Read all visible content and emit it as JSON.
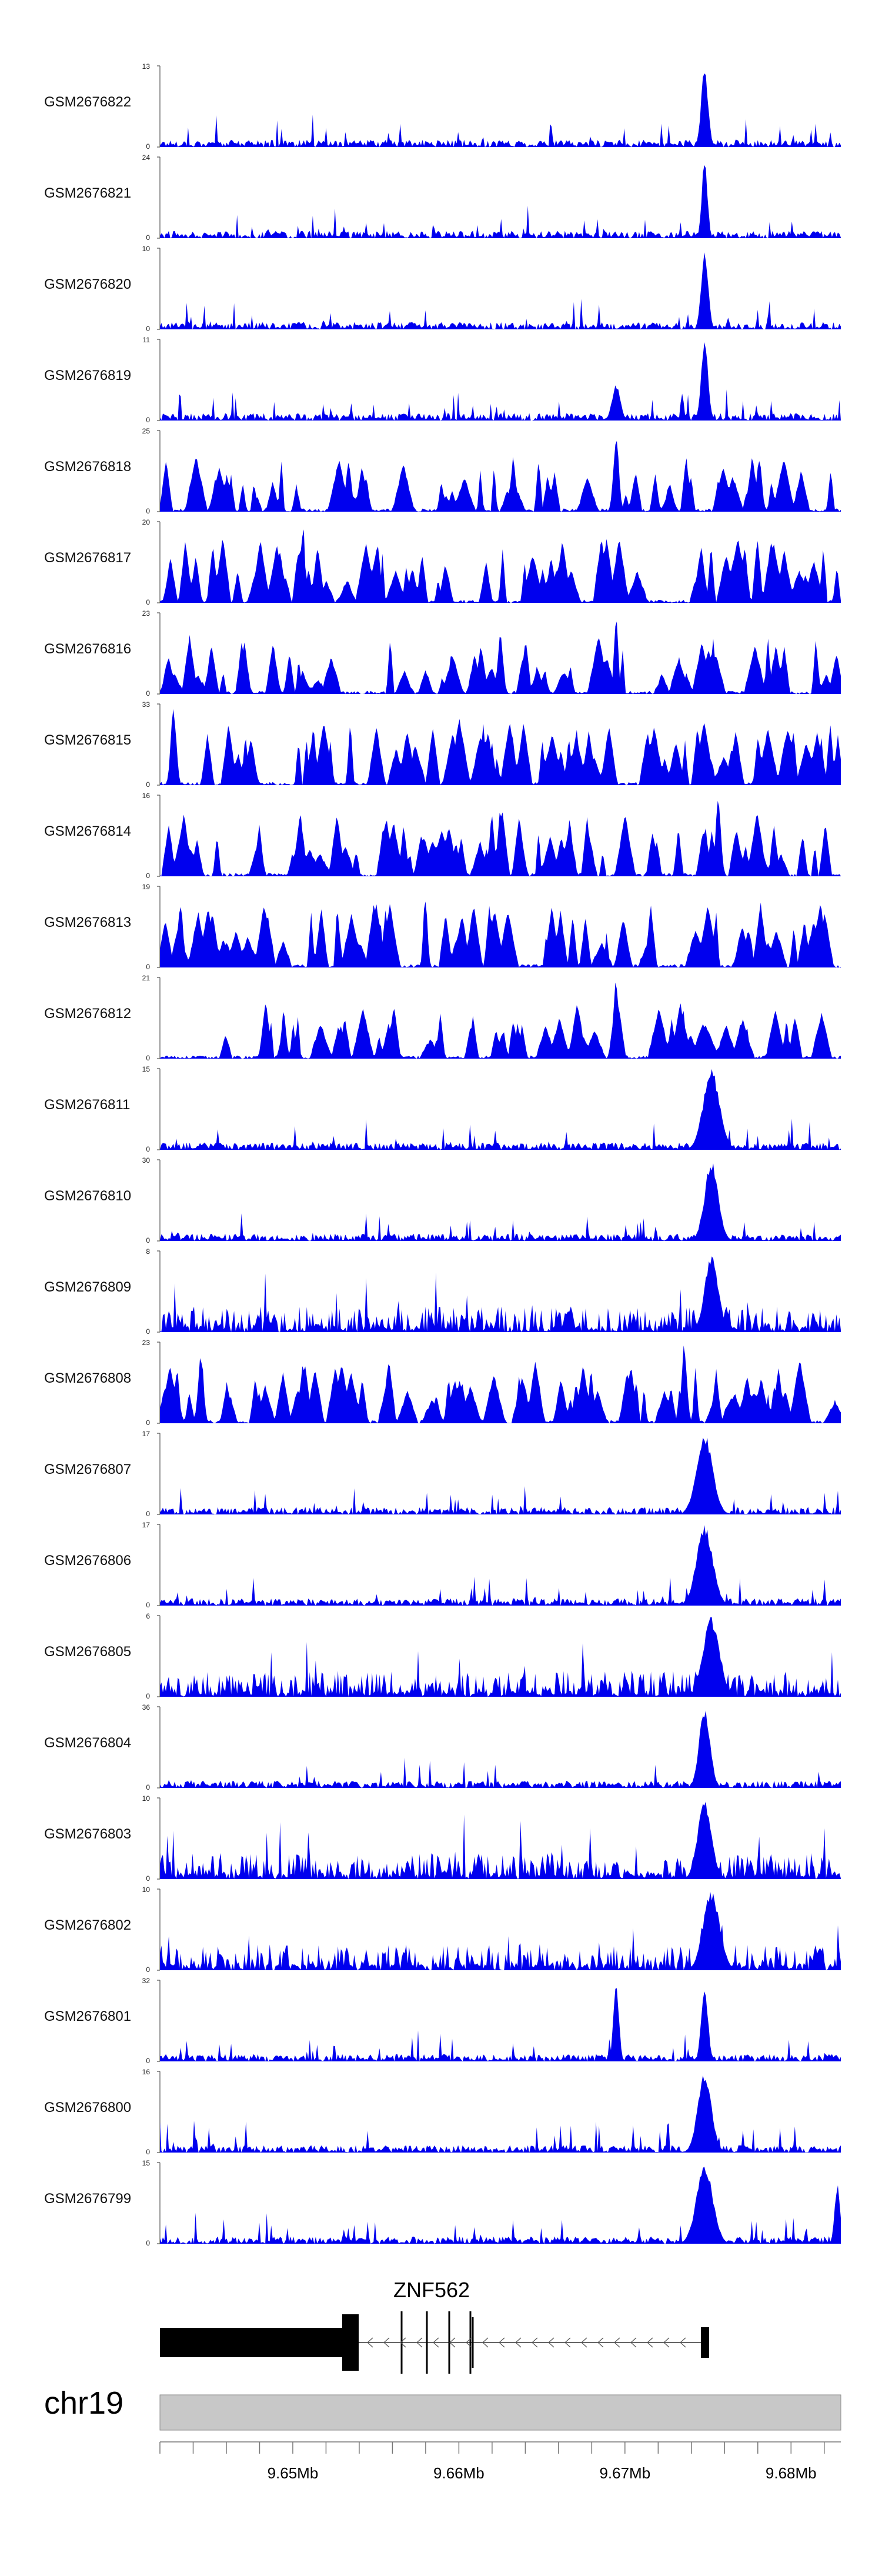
{
  "chart_data": {
    "type": "area",
    "title": "",
    "xlabel": "",
    "ylabel": "",
    "chromosome": "chr19",
    "x_range_bp": [
      9642000,
      9683000
    ],
    "x_ticks_bp": [
      9650000,
      9660000,
      9670000,
      9680000
    ],
    "x_tick_labels": [
      "9.65Mb",
      "9.66Mb",
      "9.67Mb",
      "9.68Mb"
    ],
    "series_color": "#0000ee",
    "tracks": [
      {
        "name": "GSM2676822",
        "ymax": 13,
        "style": 0,
        "peaks": [
          [
            0.8,
            1.0,
            0.005
          ]
        ]
      },
      {
        "name": "GSM2676821",
        "ymax": 24,
        "style": 0,
        "peaks": [
          [
            0.8,
            1.0,
            0.004
          ]
        ]
      },
      {
        "name": "GSM2676820",
        "ymax": 10,
        "style": 0,
        "peaks": [
          [
            0.8,
            1.0,
            0.005
          ]
        ]
      },
      {
        "name": "GSM2676819",
        "ymax": 11,
        "style": 0,
        "peaks": [
          [
            0.8,
            1.0,
            0.005
          ],
          [
            0.67,
            0.45,
            0.006
          ]
        ]
      },
      {
        "name": "GSM2676818",
        "ymax": 25,
        "style": 1,
        "peaks": [
          [
            0.67,
            1.0,
            0.004
          ],
          [
            0.88,
            0.7,
            0.004
          ]
        ]
      },
      {
        "name": "GSM2676817",
        "ymax": 20,
        "style": 2,
        "peaks": [
          [
            0.21,
            1.0,
            0.003
          ]
        ]
      },
      {
        "name": "GSM2676816",
        "ymax": 23,
        "style": 1,
        "peaks": [
          [
            0.67,
            1.0,
            0.003
          ],
          [
            0.5,
            0.75,
            0.004
          ]
        ]
      },
      {
        "name": "GSM2676815",
        "ymax": 33,
        "style": 2,
        "peaks": [
          [
            0.02,
            1.0,
            0.004
          ]
        ]
      },
      {
        "name": "GSM2676814",
        "ymax": 16,
        "style": 2,
        "peaks": [
          [
            0.82,
            0.95,
            0.004
          ],
          [
            0.5,
            0.85,
            0.004
          ]
        ]
      },
      {
        "name": "GSM2676813",
        "ymax": 19,
        "style": 2,
        "peaks": [
          [
            0.39,
            0.95,
            0.003
          ],
          [
            0.03,
            0.8,
            0.004
          ]
        ]
      },
      {
        "name": "GSM2676812",
        "ymax": 21,
        "style": 1,
        "peaks": [
          [
            0.67,
            1.0,
            0.004
          ],
          [
            0.8,
            0.45,
            0.01
          ]
        ]
      },
      {
        "name": "GSM2676811",
        "ymax": 15,
        "style": 0,
        "peaks": [
          [
            0.81,
            1.0,
            0.012
          ]
        ]
      },
      {
        "name": "GSM2676810",
        "ymax": 30,
        "style": 0,
        "peaks": [
          [
            0.81,
            1.0,
            0.01
          ]
        ]
      },
      {
        "name": "GSM2676809",
        "ymax": 8,
        "style": 3,
        "peaks": [
          [
            0.81,
            0.95,
            0.01
          ]
        ]
      },
      {
        "name": "GSM2676808",
        "ymax": 23,
        "style": 2,
        "peaks": [
          [
            0.06,
            0.9,
            0.004
          ],
          [
            0.77,
            1.0,
            0.004
          ]
        ]
      },
      {
        "name": "GSM2676807",
        "ymax": 17,
        "style": 0,
        "peaks": [
          [
            0.8,
            1.0,
            0.012
          ]
        ]
      },
      {
        "name": "GSM2676806",
        "ymax": 17,
        "style": 0,
        "peaks": [
          [
            0.8,
            1.0,
            0.012
          ]
        ]
      },
      {
        "name": "GSM2676805",
        "ymax": 6,
        "style": 3,
        "peaks": [
          [
            0.81,
            1.0,
            0.012
          ]
        ]
      },
      {
        "name": "GSM2676804",
        "ymax": 36,
        "style": 0,
        "peaks": [
          [
            0.8,
            1.0,
            0.008
          ]
        ]
      },
      {
        "name": "GSM2676803",
        "ymax": 10,
        "style": 3,
        "peaks": [
          [
            0.8,
            1.0,
            0.01
          ]
        ]
      },
      {
        "name": "GSM2676802",
        "ymax": 10,
        "style": 3,
        "peaks": [
          [
            0.81,
            1.0,
            0.012
          ]
        ]
      },
      {
        "name": "GSM2676801",
        "ymax": 32,
        "style": 0,
        "peaks": [
          [
            0.67,
            1.0,
            0.004
          ],
          [
            0.8,
            0.9,
            0.005
          ]
        ]
      },
      {
        "name": "GSM2676800",
        "ymax": 16,
        "style": 0,
        "peaks": [
          [
            0.8,
            1.0,
            0.01
          ]
        ]
      },
      {
        "name": "GSM2676799",
        "ymax": 15,
        "style": 0,
        "peaks": [
          [
            0.8,
            1.0,
            0.012
          ],
          [
            0.995,
            0.75,
            0.004
          ]
        ]
      }
    ],
    "gene": {
      "name": "ZNF562",
      "strand": "-",
      "span_bp": [
        9642100,
        9675200
      ]
    }
  }
}
